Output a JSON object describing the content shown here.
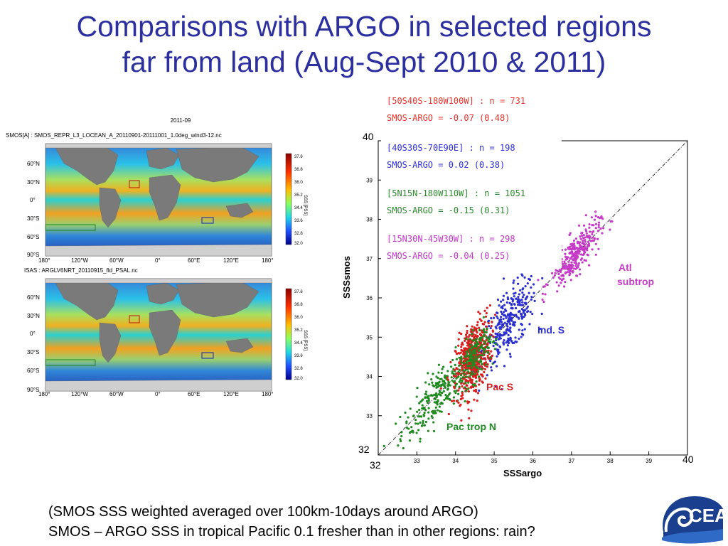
{
  "title": {
    "line1": "Comparisons with ARGO in selected regions",
    "line2": "far from land (Aug-Sept 2010 & 2011)"
  },
  "maps": {
    "date": "2011-09",
    "top_title": "SMOS[A] : SMOS_REPR_L3_LOCEAN_A_20110901-20111001_1.0deg_wind3-12.nc",
    "bottom_title": "ISAS : ARGLV6NRT_20110915_fld_PSAL.nc",
    "lat_labels": [
      "60°N",
      "30°N",
      "0°",
      "30°S",
      "60°S",
      "90°S"
    ],
    "lon_labels": [
      "180°",
      "120°W",
      "60°W",
      "0°",
      "60°E",
      "120°E",
      "180°"
    ],
    "colorbar_ticks": [
      "37.6",
      "36.8",
      "36.0",
      "35.2",
      "34.4",
      "33.6",
      "32.8",
      "32.0"
    ],
    "colorbar_label": "SSS [PSS]"
  },
  "scatter": {
    "ytick_labels": [
      "33",
      "34",
      "35",
      "36",
      "37",
      "38",
      "39"
    ],
    "xtick_labels": [
      "33",
      "34",
      "35",
      "36",
      "37",
      "38",
      "39"
    ],
    "big_y_top": "40",
    "big_y_bottom": "32",
    "big_x_left": "32",
    "big_x_right": "40",
    "ylabel": "SSSsmos",
    "xlabel": "SSSargo",
    "legend": [
      {
        "text": "[50S40S-180W100W] : n = 731",
        "color": "#e8322c"
      },
      {
        "text": "SMOS-ARGO = -0.07 (0.48)",
        "color": "#e8322c"
      },
      {
        "text": "[40S30S-70E90E] : n = 198",
        "color": "#2d2fd8"
      },
      {
        "text": "SMOS-ARGO = 0.02 (0.38)",
        "color": "#2d2fd8"
      },
      {
        "text": "[5N15N-180W110W] : n = 1051",
        "color": "#2d8a2d"
      },
      {
        "text": "SMOS-ARGO = -0.15 (0.31)",
        "color": "#2d8a2d"
      },
      {
        "text": "[15N30N-45W30W] : n = 298",
        "color": "#c238c8"
      },
      {
        "text": "SMOS-ARGO = -0.04 (0.25)",
        "color": "#c238c8"
      }
    ],
    "annotations": {
      "atl": "Atl\nsubtrop",
      "atl_line1": "Atl",
      "atl_line2": "subtrop",
      "ind": "Ind. S",
      "pacs": "Pac S",
      "pactrop": "Pac trop N"
    },
    "colors": {
      "atl": "#c63ac8",
      "ind": "#2b2fcf",
      "pacs": "#d81e1e",
      "pactrop": "#1f8a1f"
    }
  },
  "caption": {
    "line1": "(SMOS SSS weighted averaged over 100km-10days around ARGO)",
    "line2": "SMOS – ARGO SSS in tropical Pacific 0.1 fresher than in other regions: rain?"
  },
  "logo": {
    "text": "CEAN",
    "icon": "ocean-wave-logo"
  }
}
